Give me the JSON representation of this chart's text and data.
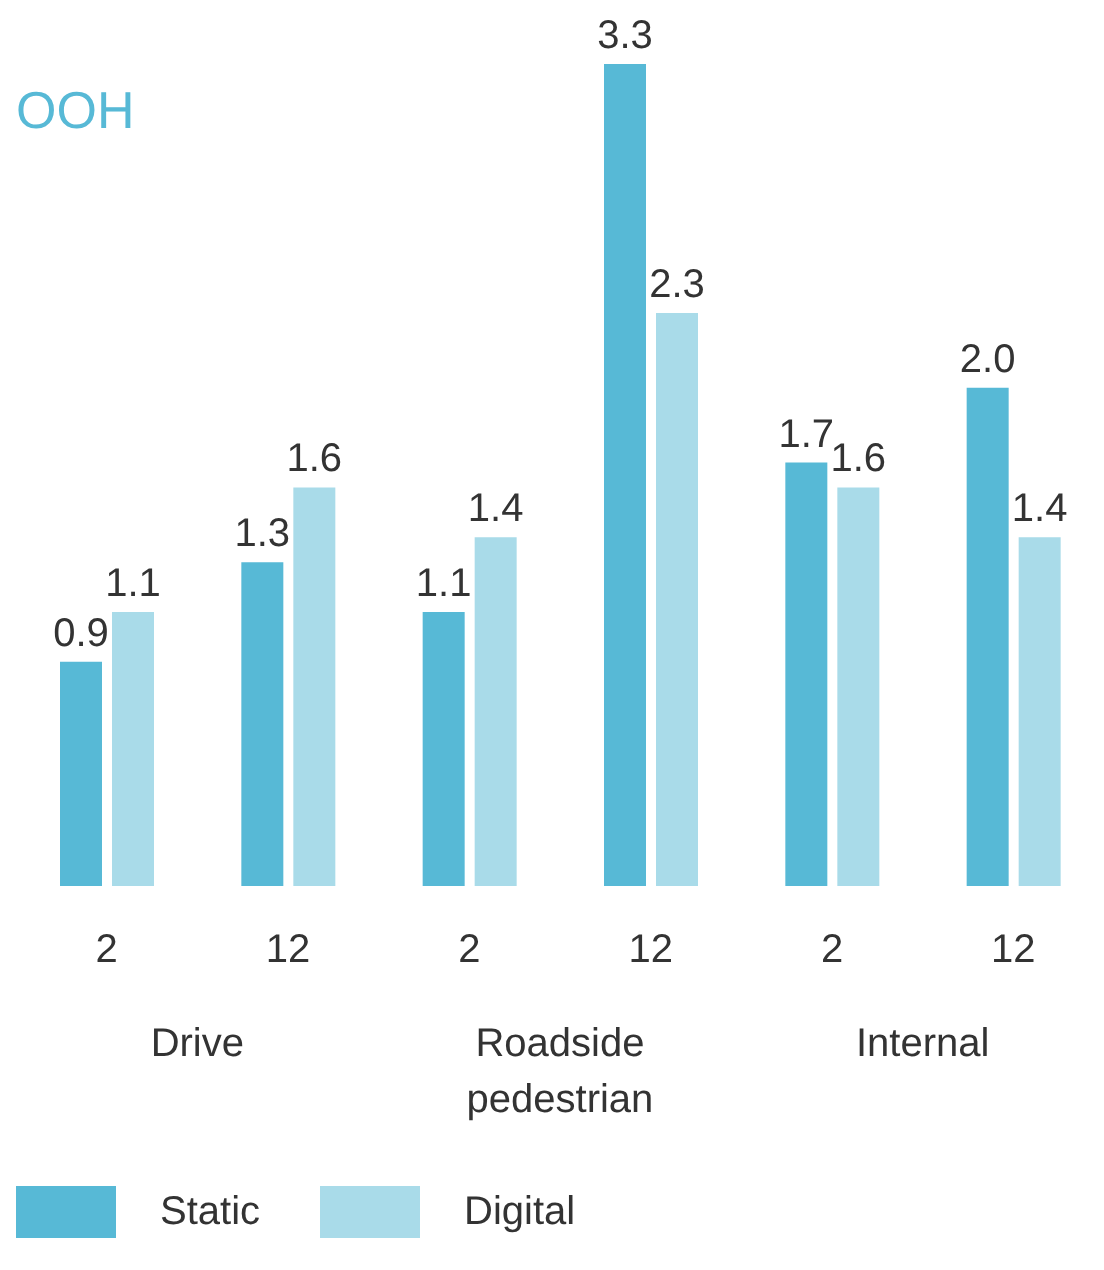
{
  "chart_data": {
    "type": "bar",
    "title": "OOH",
    "categories": [
      "2",
      "12",
      "2",
      "12",
      "2",
      "12"
    ],
    "annotations": [
      "Drive",
      "Roadside pedestrian",
      "Internal"
    ],
    "series": [
      {
        "name": "Static",
        "color": "#57b9d6",
        "values": [
          0.9,
          1.3,
          1.1,
          3.3,
          1.7,
          2.0
        ],
        "value_labels": [
          "0.9",
          "1.3",
          "1.1",
          "3.3",
          "1.7",
          "2.0"
        ]
      },
      {
        "name": "Digital",
        "color": "#a9dbe9",
        "values": [
          1.1,
          1.6,
          1.4,
          2.3,
          1.6,
          1.4
        ],
        "value_labels": [
          "1.1",
          "1.6",
          "1.4",
          "2.3",
          "1.6",
          "1.4"
        ]
      }
    ],
    "ylim": [
      0,
      3.3
    ],
    "grid": false,
    "legend": "bottom left"
  }
}
